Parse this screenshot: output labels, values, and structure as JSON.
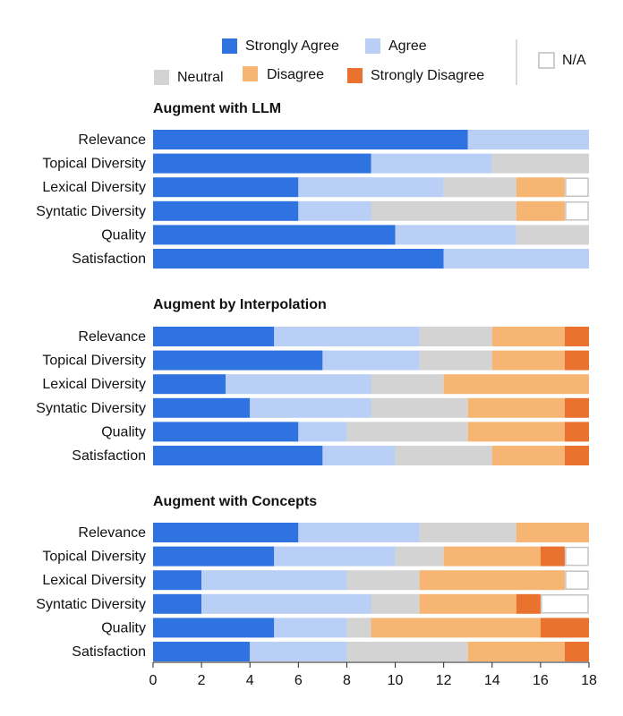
{
  "chart_data": {
    "type": "bar",
    "orientation": "horizontal",
    "stacked": true,
    "xlim": [
      0,
      18
    ],
    "xticks": [
      "0",
      "2",
      "4",
      "6",
      "8",
      "10",
      "12",
      "14",
      "16",
      "18"
    ],
    "grid": false,
    "legend_position": "top",
    "legend": [
      {
        "name": "Strongly Agree",
        "color": "#2f73e0",
        "outline": false
      },
      {
        "name": "Agree",
        "color": "#b9cff5",
        "outline": false
      },
      {
        "name": "Neutral",
        "color": "#d3d3d3",
        "outline": false
      },
      {
        "name": "Disagree",
        "color": "#f6b573",
        "outline": false
      },
      {
        "name": "Strongly Disagree",
        "color": "#e9722f",
        "outline": false
      },
      {
        "name": "N/A",
        "color": "#ffffff",
        "outline": true
      }
    ],
    "panels": [
      {
        "title": "Augment with LLM",
        "categories": [
          "Relevance",
          "Topical Diversity",
          "Lexical Diversity",
          "Syntatic Diversity",
          "Quality",
          "Satisfaction"
        ],
        "series": [
          {
            "name": "Strongly Agree",
            "values": [
              13,
              9,
              6,
              6,
              10,
              12
            ]
          },
          {
            "name": "Agree",
            "values": [
              5,
              5,
              6,
              3,
              5,
              6
            ]
          },
          {
            "name": "Neutral",
            "values": [
              0,
              4,
              3,
              6,
              3,
              0
            ]
          },
          {
            "name": "Disagree",
            "values": [
              0,
              0,
              2,
              2,
              0,
              0
            ]
          },
          {
            "name": "Strongly Disagree",
            "values": [
              0,
              0,
              0,
              0,
              0,
              0
            ]
          },
          {
            "name": "N/A",
            "values": [
              0,
              0,
              1,
              1,
              0,
              0
            ]
          }
        ]
      },
      {
        "title": "Augment by Interpolation",
        "categories": [
          "Relevance",
          "Topical Diversity",
          "Lexical Diversity",
          "Syntatic Diversity",
          "Quality",
          "Satisfaction"
        ],
        "series": [
          {
            "name": "Strongly Agree",
            "values": [
              5,
              7,
              3,
              4,
              6,
              7
            ]
          },
          {
            "name": "Agree",
            "values": [
              6,
              4,
              6,
              5,
              2,
              3
            ]
          },
          {
            "name": "Neutral",
            "values": [
              3,
              3,
              3,
              4,
              5,
              4
            ]
          },
          {
            "name": "Disagree",
            "values": [
              3,
              3,
              6,
              4,
              4,
              3
            ]
          },
          {
            "name": "Strongly Disagree",
            "values": [
              1,
              1,
              0,
              1,
              1,
              1
            ]
          },
          {
            "name": "N/A",
            "values": [
              0,
              0,
              0,
              0,
              0,
              0
            ]
          }
        ]
      },
      {
        "title": "Augment with Concepts",
        "categories": [
          "Relevance",
          "Topical Diversity",
          "Lexical Diversity",
          "Syntatic Diversity",
          "Quality",
          "Satisfaction"
        ],
        "series": [
          {
            "name": "Strongly Agree",
            "values": [
              6,
              5,
              2,
              2,
              5,
              4
            ]
          },
          {
            "name": "Agree",
            "values": [
              5,
              5,
              6,
              7,
              3,
              4
            ]
          },
          {
            "name": "Neutral",
            "values": [
              4,
              2,
              3,
              2,
              1,
              5
            ]
          },
          {
            "name": "Disagree",
            "values": [
              3,
              4,
              6,
              4,
              7,
              4
            ]
          },
          {
            "name": "Strongly Disagree",
            "values": [
              0,
              1,
              0,
              1,
              2,
              1
            ]
          },
          {
            "name": "N/A",
            "values": [
              0,
              1,
              1,
              2,
              0,
              0
            ]
          }
        ]
      }
    ]
  }
}
